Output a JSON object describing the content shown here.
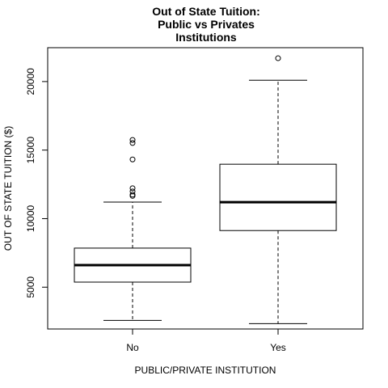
{
  "chart_data": {
    "type": "boxplot",
    "title_lines": [
      "Out of State Tuition:",
      "Public vs Privates",
      "Institutions"
    ],
    "xlabel": "PUBLIC/PRIVATE INSTITUTION",
    "ylabel": "OUT OF STATE TUITION ($)",
    "categories": [
      "No",
      "Yes"
    ],
    "yticks": [
      5000,
      10000,
      15000,
      20000
    ],
    "ylim": [
      1950,
      22470
    ],
    "boxes": [
      {
        "category": "No",
        "whisker_low": 2580,
        "q1": 5370,
        "median": 6610,
        "q3": 7850,
        "whisker_high": 11210,
        "outliers": [
          11660,
          11750,
          11980,
          12220,
          14320,
          15520,
          15740
        ]
      },
      {
        "category": "Yes",
        "whisker_low": 2340,
        "q1": 9130,
        "median": 11200,
        "q3": 13970,
        "whisker_high": 20100,
        "outliers": [
          21700
        ]
      }
    ],
    "grid": false,
    "legend": "none",
    "colors": {
      "box_fill": "#ffffff",
      "stroke": "#000000"
    }
  }
}
